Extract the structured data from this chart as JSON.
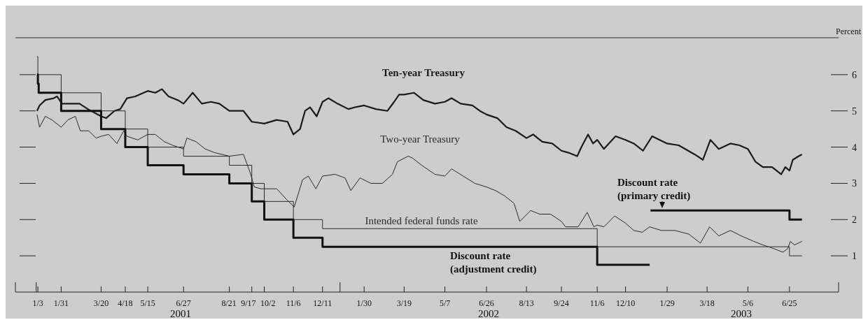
{
  "chart_data": {
    "type": "line",
    "ylabel": "Percent",
    "xlim": [
      "2000-12-07",
      "2003-08-23"
    ],
    "ylim": [
      0,
      7
    ],
    "yticks": [
      1,
      2,
      3,
      4,
      5,
      6
    ],
    "tick_labels": "xy",
    "marker": "none",
    "xticks": [
      {
        "value": "2000-12-07",
        "label": null
      },
      {
        "value": "2001-01-01",
        "label": null
      },
      {
        "value": "2001-01-03",
        "label": "1/3"
      },
      {
        "value": "2001-01-31",
        "label": "1/31"
      },
      {
        "value": "2001-03-20",
        "label": "3/20"
      },
      {
        "value": "2001-04-18",
        "label": "4/18"
      },
      {
        "value": "2001-05-15",
        "label": "5/15"
      },
      {
        "value": "2001-06-27",
        "label": "6/27"
      },
      {
        "value": "2001-08-21",
        "label": "8/21"
      },
      {
        "value": "2001-09-17",
        "label": "9/17"
      },
      {
        "value": "2001-10-02",
        "label": "10/2"
      },
      {
        "value": "2001-11-06",
        "label": "11/6"
      },
      {
        "value": "2001-12-11",
        "label": "12/11"
      },
      {
        "value": "2002-01-01",
        "label": null
      },
      {
        "value": "2002-01-30",
        "label": "1/30"
      },
      {
        "value": "2002-03-19",
        "label": "3/19"
      },
      {
        "value": "2002-05-07",
        "label": "5/7"
      },
      {
        "value": "2002-06-26",
        "label": "6/26"
      },
      {
        "value": "2002-08-13",
        "label": "8/13"
      },
      {
        "value": "2002-09-24",
        "label": "9/24"
      },
      {
        "value": "2002-11-06",
        "label": "11/6"
      },
      {
        "value": "2002-12-10",
        "label": "12/10"
      },
      {
        "value": "2003-01-29",
        "label": "1/29"
      },
      {
        "value": "2003-03-18",
        "label": "3/18"
      },
      {
        "value": "2003-05-06",
        "label": "5/6"
      },
      {
        "value": "2003-06-25",
        "label": "6/25"
      },
      {
        "value": "2003-08-23",
        "label": null
      }
    ],
    "annotations": [
      "2001",
      "2002",
      "2003"
    ],
    "series": [
      {
        "name": "Ten-year Treasury",
        "type": "line",
        "color": "#1a1a1a",
        "x": [
          "2001-01-02",
          "2001-01-05",
          "2001-01-12",
          "2001-01-22",
          "2001-01-26",
          "2001-02-01",
          "2001-02-11",
          "2001-02-22",
          "2001-03-04",
          "2001-03-20",
          "2001-03-26",
          "2001-04-05",
          "2001-04-12",
          "2001-04-16",
          "2001-04-20",
          "2001-04-30",
          "2001-05-15",
          "2001-05-24",
          "2001-06-01",
          "2001-06-09",
          "2001-06-20",
          "2001-06-27",
          "2001-07-08",
          "2001-07-19",
          "2001-07-30",
          "2001-08-09",
          "2001-08-21",
          "2001-09-07",
          "2001-09-17",
          "2001-10-02",
          "2001-10-17",
          "2001-10-30",
          "2001-11-06",
          "2001-11-14",
          "2001-11-20",
          "2001-11-26",
          "2001-12-04",
          "2001-12-11",
          "2001-12-18",
          "2001-12-29",
          "2002-01-11",
          "2002-01-19",
          "2002-01-30",
          "2002-02-13",
          "2002-02-27",
          "2002-03-07",
          "2002-03-13",
          "2002-03-19",
          "2002-03-31",
          "2002-04-11",
          "2002-04-25",
          "2002-05-07",
          "2002-05-15",
          "2002-05-26",
          "2002-06-09",
          "2002-06-18",
          "2002-06-26",
          "2002-07-09",
          "2002-07-20",
          "2002-07-31",
          "2002-08-13",
          "2002-08-21",
          "2002-09-01",
          "2002-09-13",
          "2002-09-24",
          "2002-10-02",
          "2002-10-13",
          "2002-10-18",
          "2002-10-26",
          "2002-11-01",
          "2002-11-06",
          "2002-11-14",
          "2002-11-28",
          "2002-12-10",
          "2002-12-20",
          "2002-12-31",
          "2003-01-11",
          "2003-01-29",
          "2003-02-12",
          "2003-03-03",
          "2003-03-13",
          "2003-03-22",
          "2003-04-01",
          "2003-04-15",
          "2003-04-26",
          "2003-05-06",
          "2003-05-15",
          "2003-05-24",
          "2003-06-04",
          "2003-06-15",
          "2003-06-20",
          "2003-06-25",
          "2003-06-29",
          "2003-07-06",
          "2003-07-10"
        ],
        "values": [
          5.0,
          5.15,
          5.3,
          5.35,
          5.4,
          5.2,
          5.2,
          5.2,
          5.05,
          4.85,
          4.8,
          5.0,
          5.05,
          5.2,
          5.35,
          5.4,
          5.55,
          5.5,
          5.6,
          5.4,
          5.3,
          5.2,
          5.5,
          5.2,
          5.25,
          5.2,
          5.0,
          5.0,
          4.7,
          4.65,
          4.75,
          4.7,
          4.35,
          4.5,
          5.0,
          5.1,
          4.85,
          5.25,
          5.35,
          5.2,
          5.05,
          5.1,
          5.15,
          5.05,
          5.0,
          5.25,
          5.45,
          5.45,
          5.5,
          5.3,
          5.2,
          5.25,
          5.35,
          5.2,
          5.15,
          5.0,
          4.9,
          4.8,
          4.55,
          4.45,
          4.25,
          4.35,
          4.15,
          4.1,
          3.9,
          3.85,
          3.75,
          4.0,
          4.35,
          4.1,
          4.2,
          3.95,
          4.3,
          4.2,
          4.1,
          3.9,
          4.3,
          4.1,
          4.05,
          3.8,
          3.65,
          4.2,
          3.95,
          4.1,
          4.05,
          3.95,
          3.6,
          3.45,
          3.45,
          3.25,
          3.45,
          3.35,
          3.65,
          3.75,
          3.8
        ]
      },
      {
        "name": "Two-year Treasury",
        "type": "line",
        "color": "#2a2a2a",
        "x": [
          "2001-01-02",
          "2001-01-05",
          "2001-01-12",
          "2001-01-20",
          "2001-01-31",
          "2001-02-08",
          "2001-02-17",
          "2001-02-23",
          "2001-03-05",
          "2001-03-14",
          "2001-03-20",
          "2001-03-29",
          "2001-04-08",
          "2001-04-16",
          "2001-04-20",
          "2001-05-03",
          "2001-05-15",
          "2001-05-24",
          "2001-06-04",
          "2001-06-14",
          "2001-06-27",
          "2001-07-01",
          "2001-07-12",
          "2001-07-23",
          "2001-08-03",
          "2001-08-21",
          "2001-09-07",
          "2001-09-15",
          "2001-09-20",
          "2001-09-28",
          "2001-10-17",
          "2001-10-29",
          "2001-11-07",
          "2001-11-17",
          "2001-11-24",
          "2001-12-03",
          "2001-12-11",
          "2001-12-26",
          "2002-01-07",
          "2002-01-14",
          "2002-01-25",
          "2002-02-07",
          "2002-02-21",
          "2002-03-05",
          "2002-03-11",
          "2002-03-24",
          "2002-03-29",
          "2002-04-09",
          "2002-04-25",
          "2002-05-07",
          "2002-05-15",
          "2002-05-29",
          "2002-06-12",
          "2002-06-26",
          "2002-07-07",
          "2002-07-18",
          "2002-07-29",
          "2002-08-05",
          "2002-08-18",
          "2002-08-29",
          "2002-09-11",
          "2002-09-24",
          "2002-09-29",
          "2002-10-14",
          "2002-10-25",
          "2002-11-02",
          "2002-11-06",
          "2002-11-14",
          "2002-11-27",
          "2002-12-10",
          "2002-12-20",
          "2002-12-30",
          "2003-01-08",
          "2003-01-22",
          "2003-02-07",
          "2003-02-24",
          "2003-03-10",
          "2003-03-21",
          "2003-04-01",
          "2003-04-15",
          "2003-04-28",
          "2003-05-13",
          "2003-05-24",
          "2003-06-06",
          "2003-06-17",
          "2003-06-23",
          "2003-06-26",
          "2003-07-01",
          "2003-07-10"
        ],
        "values": [
          4.9,
          4.55,
          4.85,
          4.75,
          4.55,
          4.75,
          4.85,
          4.45,
          4.45,
          4.25,
          4.3,
          4.35,
          4.1,
          4.45,
          4.3,
          4.2,
          4.35,
          4.35,
          4.15,
          4.05,
          3.95,
          4.25,
          4.15,
          3.95,
          3.85,
          3.75,
          3.8,
          3.3,
          2.9,
          2.85,
          2.85,
          2.55,
          2.35,
          3.1,
          3.2,
          2.85,
          3.2,
          3.25,
          3.15,
          2.8,
          3.15,
          3.0,
          3.0,
          3.25,
          3.6,
          3.75,
          3.7,
          3.5,
          3.25,
          3.2,
          3.4,
          3.2,
          3.0,
          2.9,
          2.8,
          2.65,
          2.45,
          1.95,
          2.25,
          2.15,
          2.15,
          1.95,
          1.8,
          1.8,
          2.2,
          1.8,
          1.85,
          1.8,
          2.1,
          1.9,
          1.7,
          1.65,
          1.8,
          1.7,
          1.7,
          1.6,
          1.35,
          1.8,
          1.55,
          1.7,
          1.55,
          1.4,
          1.3,
          1.2,
          1.1,
          1.2,
          1.4,
          1.3,
          1.4
        ]
      },
      {
        "name": "Intended federal funds rate",
        "type": "step",
        "color": "#2a2a2a",
        "x": [
          "2001-01-02",
          "2001-01-03",
          "2001-01-31",
          "2001-03-20",
          "2001-04-18",
          "2001-05-15",
          "2001-06-27",
          "2001-08-21",
          "2001-09-17",
          "2001-10-02",
          "2001-11-06",
          "2001-12-11",
          "2002-11-06",
          "2003-06-25",
          "2003-07-10"
        ],
        "values": [
          6.5,
          6.0,
          5.5,
          5.0,
          4.5,
          4.0,
          3.75,
          3.5,
          3.0,
          2.5,
          2.0,
          1.75,
          1.25,
          1.0,
          1.0
        ]
      },
      {
        "name": "Discount rate (adjustment credit)",
        "type": "step",
        "color": "#111111",
        "x": [
          "2001-01-02",
          "2001-01-03",
          "2001-01-04",
          "2001-01-31",
          "2001-03-20",
          "2001-04-18",
          "2001-05-15",
          "2001-06-27",
          "2001-08-21",
          "2001-09-17",
          "2001-10-02",
          "2001-11-06",
          "2001-12-11",
          "2002-11-06",
          "2003-01-08"
        ],
        "values": [
          6.0,
          5.75,
          5.5,
          5.0,
          4.5,
          4.0,
          3.5,
          3.25,
          3.0,
          2.5,
          2.0,
          1.5,
          1.25,
          0.75,
          0.75
        ]
      },
      {
        "name": "Discount rate (primary credit)",
        "type": "step",
        "color": "#111111",
        "x": [
          "2003-01-09",
          "2003-06-25",
          "2003-07-10"
        ],
        "values": [
          2.25,
          2.0,
          2.0
        ]
      }
    ]
  }
}
